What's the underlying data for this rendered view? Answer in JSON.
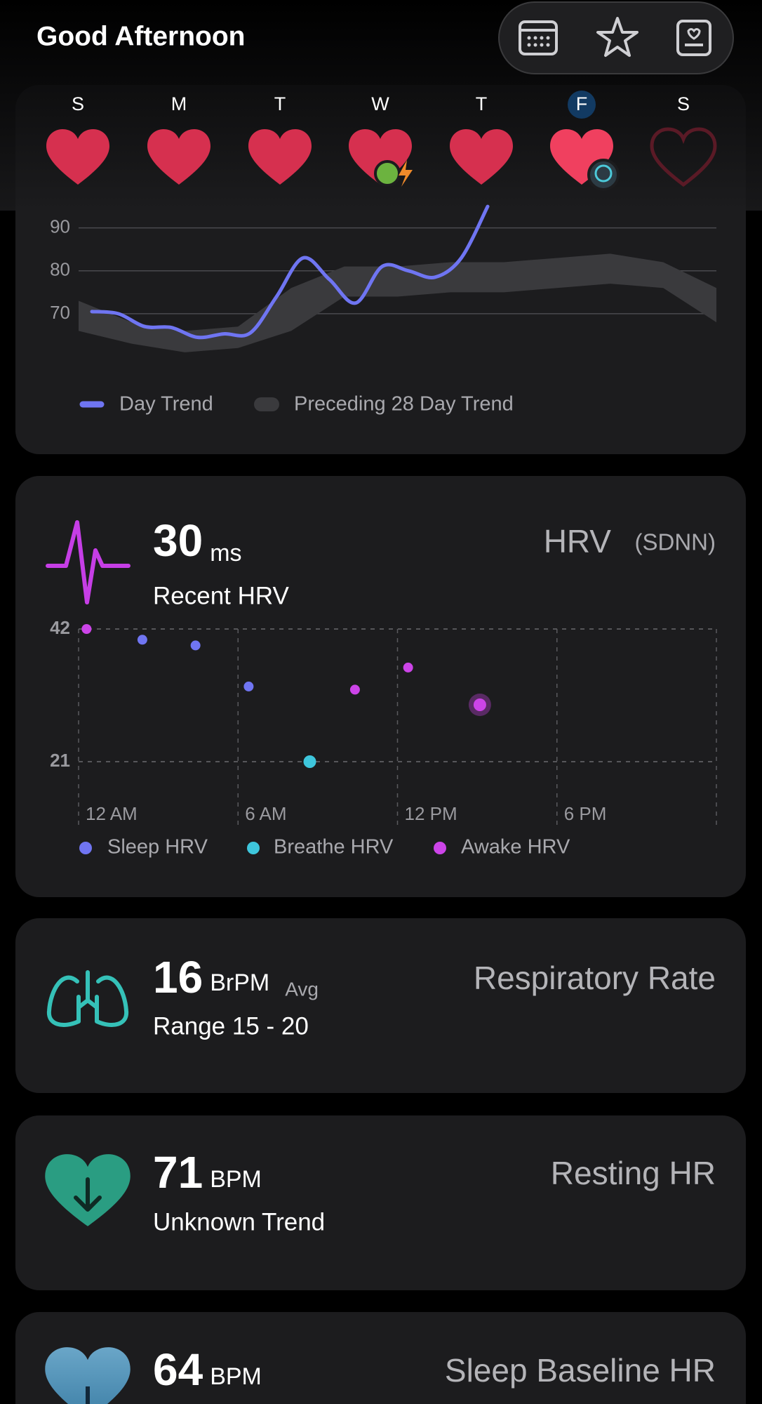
{
  "header": {
    "title": "Good Afternoon"
  },
  "week": {
    "days": [
      "S",
      "M",
      "T",
      "W",
      "T",
      "F",
      "S"
    ],
    "today": 5
  },
  "trend_chart": {
    "type": "line",
    "series": [
      {
        "name": "Day Trend",
        "color": "#6f75f2",
        "values": [
          70.5,
          70,
          67,
          66.8,
          64.5,
          65.3,
          65.5,
          74,
          83,
          78,
          72.5,
          81,
          80,
          78.5,
          83,
          95
        ]
      }
    ],
    "band": {
      "name": "Preceding 28 Day Trend",
      "color": "#3a3a3d",
      "upper": [
        73,
        68,
        66,
        67,
        76,
        81,
        81,
        82,
        82,
        83,
        84,
        82,
        76
      ],
      "lower": [
        66,
        63,
        61,
        62,
        66,
        74,
        74,
        75,
        75,
        76,
        77,
        76,
        68
      ]
    },
    "ylim": [
      60,
      96
    ],
    "yticks": [
      70,
      80,
      90
    ],
    "grid": true
  },
  "hrv": {
    "value": 30,
    "unit": "ms",
    "label": "Recent HRV",
    "title": "HRV",
    "subtitle": "(SDNN)",
    "chart": {
      "type": "scatter",
      "xlim": [
        0,
        24
      ],
      "xticks": [
        {
          "value": 0,
          "label": "12 AM"
        },
        {
          "value": 6,
          "label": "6 AM"
        },
        {
          "value": 12,
          "label": "12 PM"
        },
        {
          "value": 18,
          "label": "6 PM"
        }
      ],
      "ylim": [
        21,
        42
      ],
      "yticks": [
        21,
        42
      ],
      "grid": true,
      "series": [
        {
          "name": "Sleep HRV",
          "color": "#7075f2",
          "x": [
            2.4,
            4.4,
            6.4
          ],
          "values": [
            40.3,
            39.4,
            32.9
          ]
        },
        {
          "name": "Breathe HRV",
          "color": "#3ec6dc",
          "x": [
            8.7
          ],
          "values": [
            21
          ]
        },
        {
          "name": "Awake HRV",
          "color": "#cc44e8",
          "x": [
            0.3,
            10.4,
            12.4,
            15.1
          ],
          "values": [
            42,
            32.4,
            35.9,
            30
          ]
        }
      ]
    }
  },
  "respiratory": {
    "value": 16,
    "unit": "BrPM",
    "qualifier": "Avg",
    "range": "Range 15 - 20",
    "title": "Respiratory Rate"
  },
  "resting_hr": {
    "value": 71,
    "unit": "BPM",
    "trend": "Unknown Trend",
    "title": "Resting HR"
  },
  "sleep_baseline_hr": {
    "value": 64,
    "unit": "BPM",
    "title": "Sleep Baseline HR"
  }
}
